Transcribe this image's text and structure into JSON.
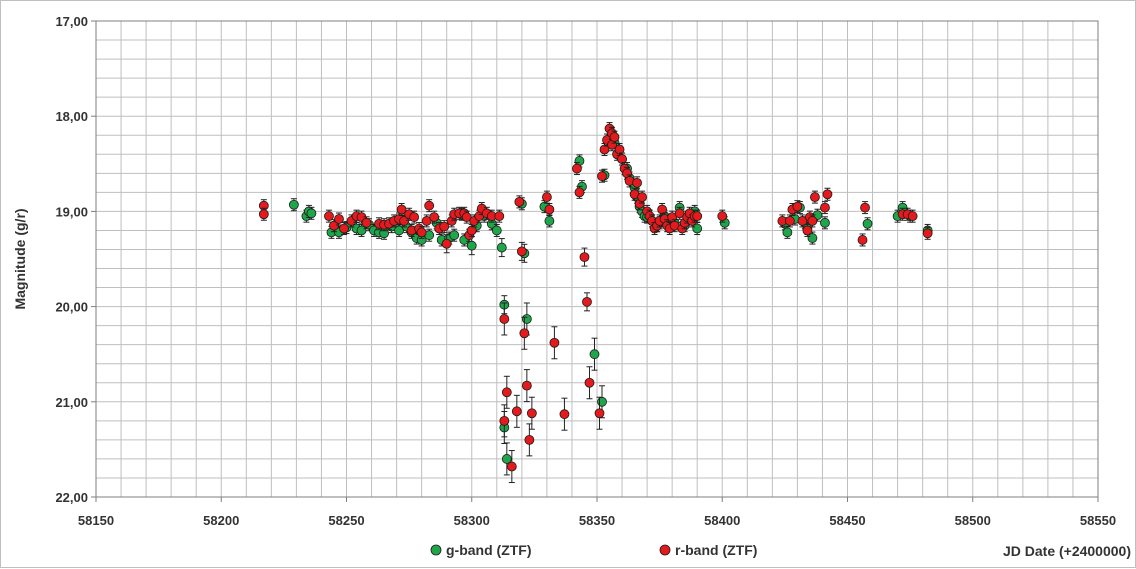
{
  "chart_data": {
    "type": "scatter",
    "title": "",
    "xlabel": "JD Date (+2400000)",
    "ylabel": "Magnitude (g/r)",
    "xlim": [
      58150,
      58550
    ],
    "ylim": [
      17.0,
      22.0
    ],
    "y_inverted": true,
    "xticks": [
      "58150",
      "58200",
      "58250",
      "58300",
      "58350",
      "58400",
      "58450",
      "58500",
      "58550"
    ],
    "yticks": [
      "17,00",
      "18,00",
      "19,00",
      "20,00",
      "21,00",
      "22,00"
    ],
    "grid": true,
    "legend_position": "bottom-center",
    "series": [
      {
        "name": "g-band (ZTF)",
        "color": "#1fa64a",
        "points": [
          [
            58229,
            18.93
          ],
          [
            58234,
            19.05
          ],
          [
            58235,
            19.0
          ],
          [
            58236,
            19.02
          ],
          [
            58244,
            19.22
          ],
          [
            58247,
            19.22
          ],
          [
            58250,
            19.17
          ],
          [
            58254,
            19.18
          ],
          [
            58256,
            19.2
          ],
          [
            58259,
            19.14
          ],
          [
            58261,
            19.2
          ],
          [
            58263,
            19.22
          ],
          [
            58265,
            19.23
          ],
          [
            58268,
            19.16
          ],
          [
            58271,
            19.2
          ],
          [
            58274,
            19.16
          ],
          [
            58276,
            19.22
          ],
          [
            58278,
            19.28
          ],
          [
            58280,
            19.3
          ],
          [
            58283,
            19.25
          ],
          [
            58286,
            19.12
          ],
          [
            58288,
            19.3
          ],
          [
            58291,
            19.28
          ],
          [
            58293,
            19.25
          ],
          [
            58296,
            19.03
          ],
          [
            58297,
            19.3
          ],
          [
            58300,
            19.36
          ],
          [
            58302,
            19.15
          ],
          [
            58305,
            19.05
          ],
          [
            58308,
            19.13
          ],
          [
            58310,
            19.2
          ],
          [
            58312,
            19.38
          ],
          [
            58313,
            19.98
          ],
          [
            58313,
            21.27
          ],
          [
            58314,
            21.6
          ],
          [
            58320,
            18.92
          ],
          [
            58321,
            19.44
          ],
          [
            58322,
            20.13
          ],
          [
            58329,
            18.95
          ],
          [
            58331,
            19.1
          ],
          [
            58343,
            18.47
          ],
          [
            58344,
            18.74
          ],
          [
            58349,
            20.5
          ],
          [
            58352,
            21.0
          ],
          [
            58353,
            18.62
          ],
          [
            58357,
            18.28
          ],
          [
            58360,
            18.45
          ],
          [
            58362,
            18.55
          ],
          [
            58363,
            18.65
          ],
          [
            58365,
            18.75
          ],
          [
            58366,
            18.85
          ],
          [
            58367,
            18.95
          ],
          [
            58368,
            19.0
          ],
          [
            58369,
            19.05
          ],
          [
            58370,
            19.06
          ],
          [
            58371,
            19.05
          ],
          [
            58372,
            19.1
          ],
          [
            58374,
            19.15
          ],
          [
            58375,
            19.12
          ],
          [
            58377,
            19.05
          ],
          [
            58379,
            19.1
          ],
          [
            58381,
            19.12
          ],
          [
            58383,
            18.96
          ],
          [
            58385,
            19.15
          ],
          [
            58387,
            19.08
          ],
          [
            58389,
            19.0
          ],
          [
            58390,
            19.18
          ],
          [
            58401,
            19.12
          ],
          [
            58425,
            19.13
          ],
          [
            58426,
            19.22
          ],
          [
            58429,
            19.08
          ],
          [
            58431,
            18.96
          ],
          [
            58433,
            19.12
          ],
          [
            58434,
            19.18
          ],
          [
            58436,
            19.28
          ],
          [
            58438,
            19.04
          ],
          [
            58441,
            19.12
          ],
          [
            58458,
            19.13
          ],
          [
            58470,
            19.05
          ],
          [
            58472,
            18.96
          ],
          [
            58475,
            19.05
          ],
          [
            58482,
            19.2
          ]
        ]
      },
      {
        "name": "r-band (ZTF)",
        "color": "#e41a1c",
        "points": [
          [
            58217,
            18.94
          ],
          [
            58217,
            19.03
          ],
          [
            58243,
            19.05
          ],
          [
            58245,
            19.15
          ],
          [
            58247,
            19.08
          ],
          [
            58249,
            19.18
          ],
          [
            58252,
            19.1
          ],
          [
            58254,
            19.05
          ],
          [
            58256,
            19.06
          ],
          [
            58258,
            19.12
          ],
          [
            58263,
            19.13
          ],
          [
            58265,
            19.14
          ],
          [
            58267,
            19.13
          ],
          [
            58269,
            19.1
          ],
          [
            58271,
            19.08
          ],
          [
            58272,
            18.98
          ],
          [
            58273,
            19.1
          ],
          [
            58275,
            19.03
          ],
          [
            58276,
            19.2
          ],
          [
            58277,
            19.06
          ],
          [
            58279,
            19.18
          ],
          [
            58280,
            19.22
          ],
          [
            58282,
            19.1
          ],
          [
            58283,
            18.94
          ],
          [
            58285,
            19.06
          ],
          [
            58287,
            19.18
          ],
          [
            58289,
            19.16
          ],
          [
            58290,
            19.34
          ],
          [
            58292,
            19.1
          ],
          [
            58293,
            19.03
          ],
          [
            58295,
            19.02
          ],
          [
            58297,
            19.02
          ],
          [
            58298,
            19.06
          ],
          [
            58299,
            19.25
          ],
          [
            58300,
            19.2
          ],
          [
            58301,
            19.1
          ],
          [
            58303,
            19.05
          ],
          [
            58304,
            18.97
          ],
          [
            58306,
            19.02
          ],
          [
            58308,
            19.05
          ],
          [
            58311,
            19.05
          ],
          [
            58313,
            20.13
          ],
          [
            58313,
            21.2
          ],
          [
            58314,
            20.9
          ],
          [
            58316,
            21.68
          ],
          [
            58318,
            21.1
          ],
          [
            58319,
            18.9
          ],
          [
            58320,
            19.42
          ],
          [
            58321,
            20.28
          ],
          [
            58322,
            20.83
          ],
          [
            58323,
            21.4
          ],
          [
            58324,
            21.12
          ],
          [
            58330,
            18.85
          ],
          [
            58331,
            18.98
          ],
          [
            58333,
            20.38
          ],
          [
            58337,
            21.13
          ],
          [
            58342,
            18.55
          ],
          [
            58343,
            18.8
          ],
          [
            58345,
            19.48
          ],
          [
            58346,
            19.95
          ],
          [
            58347,
            20.8
          ],
          [
            58351,
            21.12
          ],
          [
            58352,
            18.63
          ],
          [
            58353,
            18.35
          ],
          [
            58354,
            18.25
          ],
          [
            58355,
            18.13
          ],
          [
            58356,
            18.18
          ],
          [
            58356,
            18.3
          ],
          [
            58357,
            18.22
          ],
          [
            58358,
            18.4
          ],
          [
            58359,
            18.35
          ],
          [
            58360,
            18.45
          ],
          [
            58361,
            18.55
          ],
          [
            58362,
            18.6
          ],
          [
            58363,
            18.68
          ],
          [
            58365,
            18.82
          ],
          [
            58366,
            18.7
          ],
          [
            58367,
            18.92
          ],
          [
            58368,
            18.85
          ],
          [
            58370,
            19.0
          ],
          [
            58371,
            19.05
          ],
          [
            58372,
            19.1
          ],
          [
            58373,
            19.18
          ],
          [
            58374,
            19.15
          ],
          [
            58375,
            19.1
          ],
          [
            58376,
            18.98
          ],
          [
            58377,
            19.08
          ],
          [
            58378,
            19.15
          ],
          [
            58379,
            19.18
          ],
          [
            58380,
            19.06
          ],
          [
            58381,
            19.15
          ],
          [
            58383,
            19.02
          ],
          [
            58384,
            19.18
          ],
          [
            58385,
            19.12
          ],
          [
            58386,
            19.06
          ],
          [
            58387,
            19.02
          ],
          [
            58388,
            19.1
          ],
          [
            58389,
            19.05
          ],
          [
            58390,
            19.05
          ],
          [
            58400,
            19.05
          ],
          [
            58424,
            19.1
          ],
          [
            58427,
            19.1
          ],
          [
            58428,
            18.98
          ],
          [
            58430,
            18.95
          ],
          [
            58432,
            19.1
          ],
          [
            58434,
            19.2
          ],
          [
            58435,
            19.06
          ],
          [
            58436,
            19.1
          ],
          [
            58437,
            18.85
          ],
          [
            58441,
            18.96
          ],
          [
            58442,
            18.82
          ],
          [
            58456,
            19.3
          ],
          [
            58457,
            18.96
          ],
          [
            58472,
            19.03
          ],
          [
            58474,
            19.03
          ],
          [
            58476,
            19.05
          ],
          [
            58482,
            19.23
          ]
        ]
      }
    ]
  }
}
